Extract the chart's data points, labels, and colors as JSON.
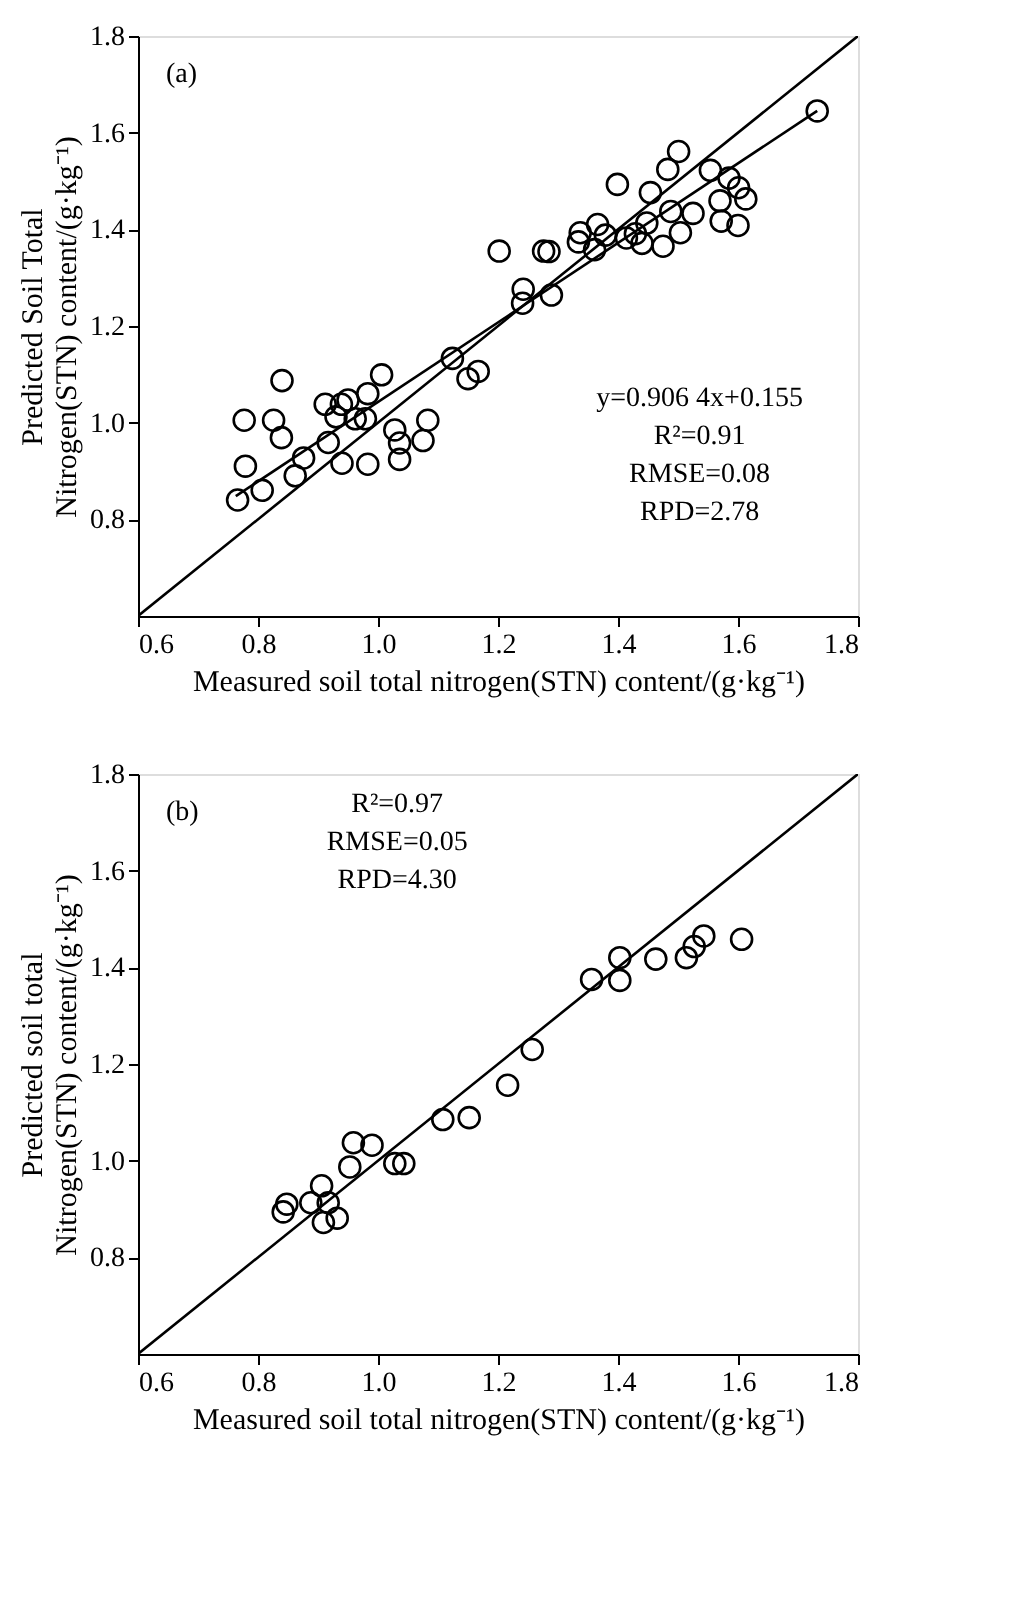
{
  "chart_data": [
    {
      "type": "scatter",
      "xlabel": "Measured soil  total nitrogen(STN)  content/(g·kg⁻¹)",
      "ylabel": "Predicted Soil Total\nNitrogen(STN) content/(g·kg⁻¹)",
      "xlim": [
        0.6,
        1.8
      ],
      "ylim": [
        0.6,
        1.8
      ],
      "xticks": [
        0.6,
        0.8,
        {
          "value": 1,
          "label": "1.0"
        },
        1.2,
        1.4,
        1.6,
        1.8
      ],
      "yticks": [
        0.8,
        {
          "value": 1,
          "label": "1.0"
        },
        1.2,
        1.4,
        1.6,
        1.8
      ],
      "annotations": [
        "(a)",
        "y=0.906 4x+0.155",
        "R²=0.91",
        "RMSE=0.08",
        "RPD=2.78"
      ],
      "series": [
        {
          "marker": "circle",
          "color": "#000000",
          "x": [
            0.84,
            0.777,
            0.826,
            0.839,
            0.779,
            0.766,
            0.807,
            0.862,
            0.876,
            0.917,
            0.912,
            0.939,
            0.95,
            0.93,
            0.962,
            0.983,
            1.006,
            0.979,
            0.94,
            0.983,
            1.028,
            1.036,
            1.036,
            1.075,
            1.083,
            1.124,
            1.167,
            1.15,
            1.732,
            1.501,
            1.483,
            1.399,
            1.454,
            1.554,
            1.585,
            1.601,
            1.613,
            1.57,
            1.572,
            1.6,
            1.525,
            1.488,
            1.504,
            1.475,
            1.448,
            1.44,
            1.429,
            1.414,
            1.379,
            1.366,
            1.337,
            1.334,
            1.361,
            1.276,
            1.285,
            1.202,
            1.242,
            1.241,
            1.289
          ],
          "values": [
            1.087,
            1.005,
            1.005,
            0.969,
            0.91,
            0.84,
            0.86,
            0.89,
            0.927,
            0.959,
            1.038,
            1.038,
            1.047,
            1.012,
            1.008,
            1.06,
            1.099,
            1.008,
            0.916,
            0.914,
            0.985,
            0.958,
            0.924,
            0.963,
            1.005,
            1.133,
            1.106,
            1.091,
            1.645,
            1.561,
            1.524,
            1.493,
            1.476,
            1.522,
            1.506,
            1.486,
            1.463,
            1.459,
            1.417,
            1.408,
            1.433,
            1.437,
            1.393,
            1.365,
            1.413,
            1.371,
            1.391,
            1.382,
            1.388,
            1.41,
            1.393,
            1.374,
            1.358,
            1.355,
            1.354,
            1.355,
            1.276,
            1.247,
            1.264
          ]
        },
        {
          "type": "line",
          "marker": "none",
          "line_style": "solid",
          "color": "#000000",
          "x": [
            0.6,
            1.8
          ],
          "values": [
            0.6,
            1.8
          ]
        },
        {
          "type": "line",
          "marker": "none",
          "line_style": "solid",
          "color": "#000000",
          "x": [
            0.763,
            1.732
          ],
          "values": [
            0.848,
            1.645
          ]
        }
      ]
    },
    {
      "type": "scatter",
      "xlabel": "Measured soil total nitrogen(STN) content/(g·kg⁻¹)",
      "ylabel": "Predicted soil total\nNitrogen(STN) content/(g·kg⁻¹)",
      "xlim": [
        0.6,
        1.8
      ],
      "ylim": [
        0.6,
        1.8
      ],
      "xticks": [
        0.6,
        0.8,
        {
          "value": 1,
          "label": "1.0"
        },
        1.2,
        1.4,
        1.6,
        1.8
      ],
      "yticks": [
        0.8,
        {
          "value": 1,
          "label": "1.0"
        },
        1.2,
        1.4,
        1.6,
        1.8
      ],
      "annotations": [
        "(b)",
        "R²=0.97",
        "RMSE=0.05",
        "RPD=4.30"
      ],
      "series": [
        {
          "marker": "circle",
          "color": "#000000",
          "x": [
            0.848,
            0.842,
            0.888,
            0.906,
            0.917,
            0.909,
            0.932,
            0.953,
            0.959,
            0.99,
            1.028,
            1.043,
            1.108,
            1.152,
            1.257,
            1.216,
            1.356,
            1.403,
            1.403,
            1.463,
            1.514,
            1.527,
            1.543,
            1.606
          ],
          "values": [
            0.91,
            0.894,
            0.913,
            0.948,
            0.913,
            0.872,
            0.881,
            0.987,
            1.037,
            1.032,
            0.994,
            0.994,
            1.085,
            1.089,
            1.23,
            1.156,
            1.375,
            1.42,
            1.373,
            1.417,
            1.42,
            1.443,
            1.465,
            1.458
          ]
        },
        {
          "type": "line",
          "marker": "none",
          "line_style": "solid",
          "color": "#000000",
          "x": [
            0.6,
            1.8
          ],
          "values": [
            0.6,
            1.8
          ]
        }
      ]
    }
  ]
}
